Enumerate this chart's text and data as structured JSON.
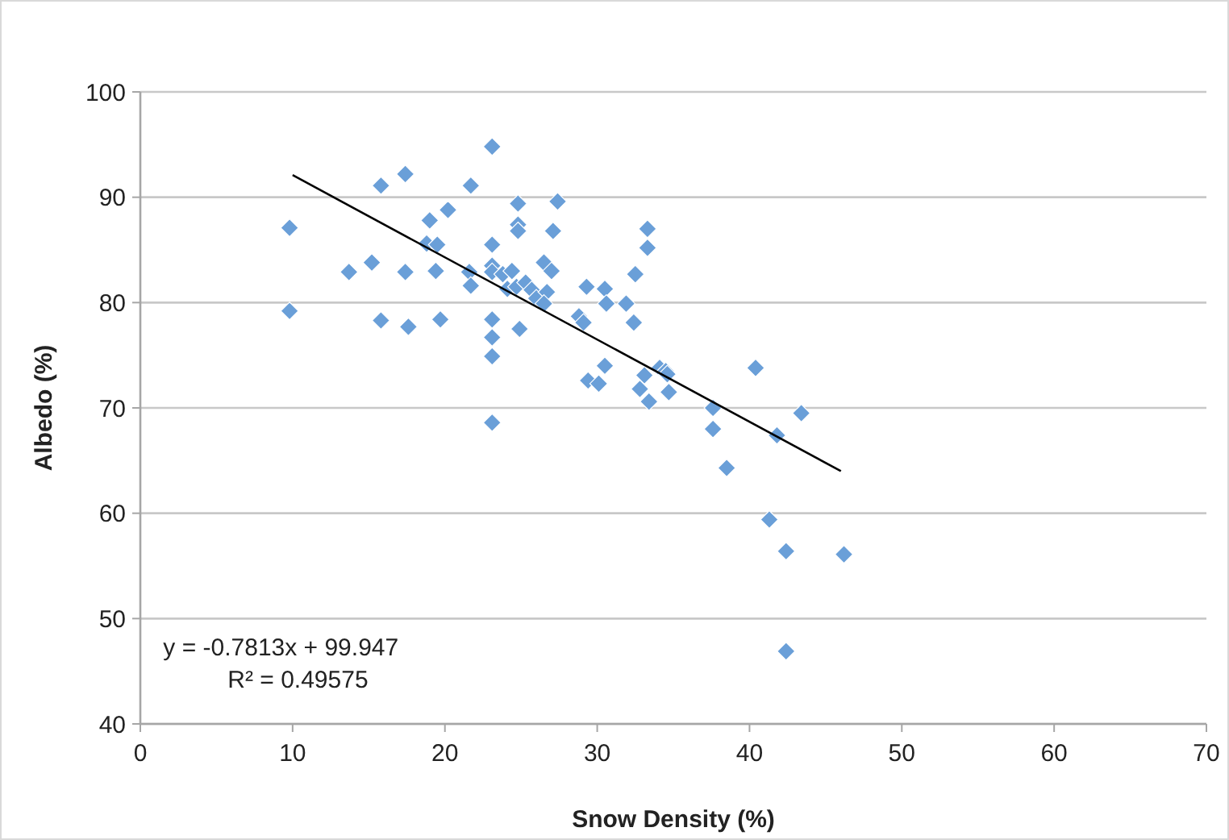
{
  "chart_data": {
    "type": "scatter",
    "xlabel": "Snow Density (%)",
    "ylabel": "Albedo (%)",
    "xlim": [
      0,
      70
    ],
    "xticks": [
      0,
      10,
      20,
      30,
      40,
      50,
      60,
      70
    ],
    "ylim": [
      40,
      100
    ],
    "yticks": [
      40,
      50,
      60,
      70,
      80,
      90,
      100
    ],
    "grid": "y",
    "marker": "diamond",
    "annotations": [
      "y = -0.7813x + 99.947",
      "R² = 0.49575"
    ],
    "series": [
      {
        "color": "#6a9fd8",
        "x": [
          9.8,
          9.8,
          13.7,
          15.2,
          15.8,
          15.8,
          17.4,
          17.4,
          17.6,
          18.8,
          19.0,
          19.4,
          19.5,
          19.7,
          20.2,
          21.6,
          21.7,
          21.7,
          23.1,
          23.1,
          23.1,
          23.1,
          23.1,
          23.1,
          23.1,
          23.1,
          23.8,
          24.1,
          24.4,
          24.7,
          24.8,
          24.8,
          24.8,
          24.9,
          25.3,
          25.7,
          26.0,
          26.5,
          26.7,
          26.5,
          27.0,
          27.1,
          27.4,
          28.8,
          29.1,
          29.3,
          29.4,
          30.1,
          30.5,
          30.5,
          30.6,
          31.9,
          32.4,
          32.5,
          32.8,
          33.1,
          33.3,
          33.3,
          33.4,
          34.1,
          34.5,
          34.7,
          34.6,
          37.6,
          37.6,
          38.5,
          40.4,
          41.3,
          41.8,
          42.4,
          42.4,
          43.4,
          46.2
        ],
        "values": [
          87.1,
          79.2,
          82.9,
          83.8,
          91.1,
          78.3,
          92.2,
          82.9,
          77.7,
          85.6,
          87.8,
          83.0,
          85.5,
          78.4,
          88.8,
          82.9,
          91.1,
          81.6,
          94.8,
          85.5,
          83.5,
          82.9,
          78.4,
          76.7,
          74.9,
          68.6,
          82.7,
          81.3,
          83.0,
          81.5,
          89.4,
          87.4,
          86.8,
          77.5,
          81.9,
          81.2,
          80.4,
          83.8,
          81.0,
          79.9,
          83.0,
          86.8,
          89.6,
          78.7,
          78.1,
          81.5,
          72.6,
          72.3,
          74.0,
          81.3,
          79.9,
          79.9,
          78.1,
          82.7,
          71.8,
          73.1,
          87.0,
          85.2,
          70.6,
          73.8,
          73.5,
          71.5,
          73.2,
          70.0,
          68.0,
          64.3,
          73.8,
          59.4,
          67.4,
          56.4,
          46.9,
          69.5,
          56.1
        ]
      },
      {
        "type": "line",
        "color": "#000000",
        "marker": "none",
        "x": [
          10,
          46
        ],
        "values": [
          92.1,
          64.0
        ]
      }
    ]
  }
}
